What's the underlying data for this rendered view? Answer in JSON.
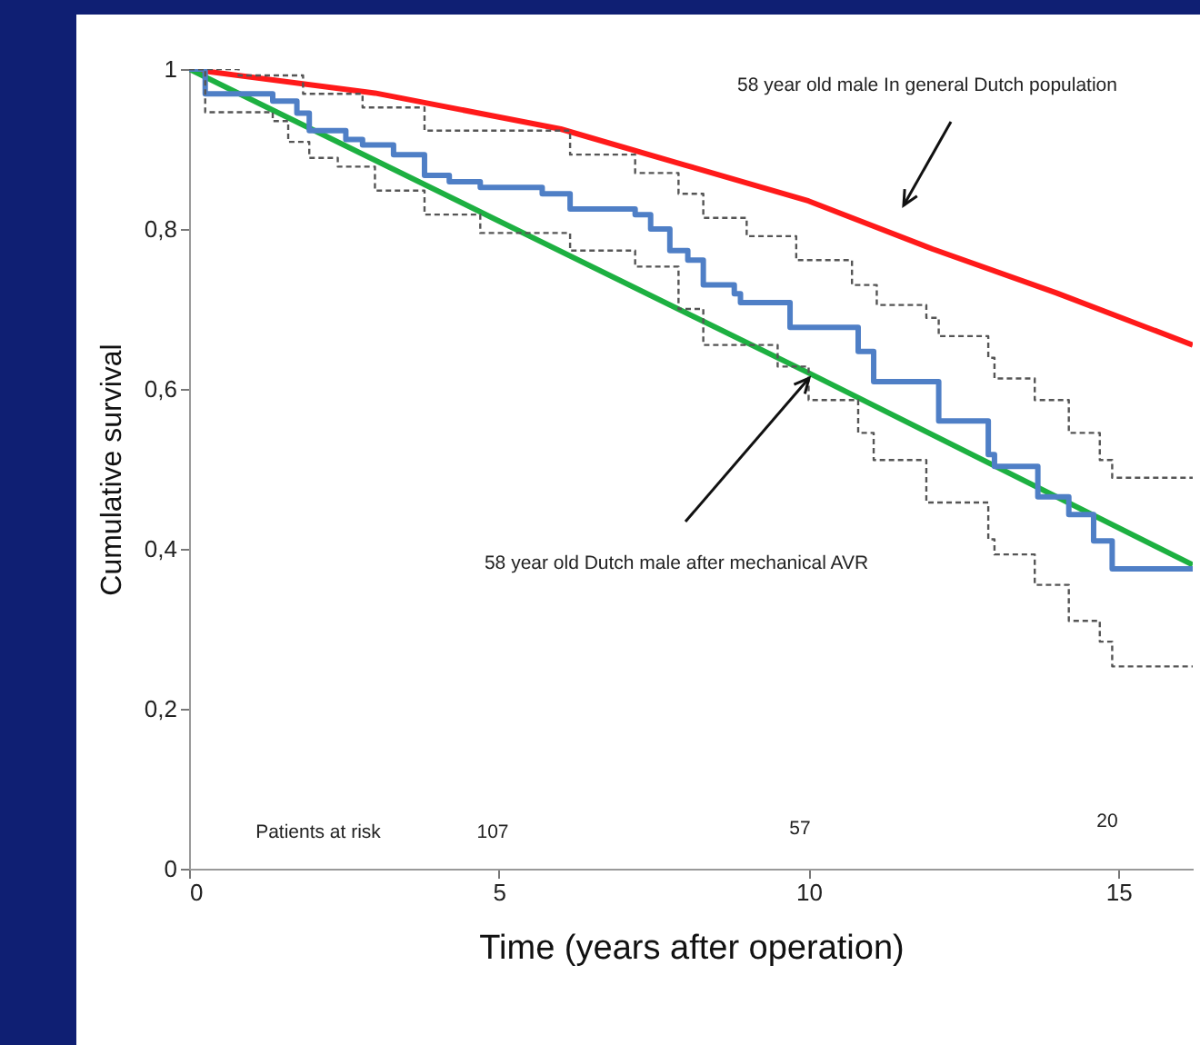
{
  "chart_data": {
    "type": "line",
    "xlabel": "Time (years after operation)",
    "ylabel": "Cumulative survival",
    "xlim": [
      0,
      16.2
    ],
    "ylim": [
      0,
      1
    ],
    "xticks": [
      0,
      5,
      10,
      15
    ],
    "yticks": [
      0,
      {
        "value": 0.2,
        "label": "0,2"
      },
      {
        "value": 0.4,
        "label": "0,4"
      },
      {
        "value": 0.6,
        "label": "0,6"
      },
      {
        "value": 0.8,
        "label": "0,8"
      },
      1
    ],
    "grid": false,
    "series": [
      {
        "type": "line",
        "color": "#ff1a1a",
        "line_style": "solid",
        "x": [
          0,
          3,
          6,
          8,
          10,
          12,
          14,
          16.2
        ],
        "values": [
          1,
          0.97,
          0.925,
          0.88,
          0.835,
          0.775,
          0.72,
          0.655
        ]
      },
      {
        "type": "line",
        "color": "#1db041",
        "line_style": "solid",
        "x": [
          0,
          5,
          10,
          16.2
        ],
        "values": [
          1,
          0.81,
          0.62,
          0.38
        ]
      },
      {
        "type": "step",
        "color": "#4f7fc6",
        "line_style": "solid",
        "x": [
          0,
          0.26,
          1.35,
          1.74,
          1.94,
          2.53,
          2.8,
          3.3,
          3.8,
          4.2,
          4.7,
          5.7,
          6.15,
          7.2,
          7.45,
          7.76,
          8.05,
          8.3,
          8.8,
          8.9,
          9.7,
          10.8,
          11.05,
          12.1,
          12.9,
          13.0,
          13.7,
          14.2,
          14.6,
          14.9,
          16.2
        ],
        "values": [
          1,
          0.969,
          0.96,
          0.945,
          0.923,
          0.912,
          0.905,
          0.893,
          0.867,
          0.859,
          0.852,
          0.844,
          0.825,
          0.818,
          0.8,
          0.773,
          0.761,
          0.73,
          0.719,
          0.708,
          0.677,
          0.647,
          0.609,
          0.56,
          0.518,
          0.503,
          0.465,
          0.443,
          0.41,
          0.375,
          0.375
        ]
      },
      {
        "type": "step",
        "color": "#555555",
        "line_style": "dashed",
        "x": [
          0,
          0.8,
          1.84,
          2.8,
          3.8,
          6.15,
          7.2,
          7.9,
          8.3,
          9.0,
          9.8,
          10.7,
          11.1,
          11.9,
          12.1,
          12.9,
          13.0,
          13.65,
          14.2,
          14.7,
          14.9,
          16.2
        ],
        "values": [
          1,
          0.992,
          0.969,
          0.952,
          0.923,
          0.893,
          0.87,
          0.844,
          0.814,
          0.791,
          0.761,
          0.73,
          0.705,
          0.689,
          0.666,
          0.639,
          0.613,
          0.586,
          0.545,
          0.511,
          0.489,
          0.489
        ]
      },
      {
        "type": "step",
        "color": "#555555",
        "line_style": "dashed",
        "x": [
          0,
          0.26,
          1.35,
          1.6,
          1.94,
          2.4,
          3.0,
          3.8,
          4.7,
          6.15,
          7.2,
          7.9,
          8.3,
          9.5,
          10.0,
          10.8,
          11.05,
          11.9,
          12.9,
          13.0,
          13.65,
          14.2,
          14.7,
          14.9,
          16.2
        ],
        "values": [
          1,
          0.946,
          0.935,
          0.909,
          0.889,
          0.878,
          0.848,
          0.818,
          0.795,
          0.773,
          0.753,
          0.7,
          0.655,
          0.628,
          0.586,
          0.545,
          0.511,
          0.458,
          0.412,
          0.393,
          0.355,
          0.31,
          0.284,
          0.253,
          0.253
        ]
      }
    ],
    "annotations": [
      "58 year old male In general Dutch population",
      "58 year old Dutch male after mechanical AVR",
      "Patients at risk",
      "107",
      "57",
      "20"
    ]
  }
}
